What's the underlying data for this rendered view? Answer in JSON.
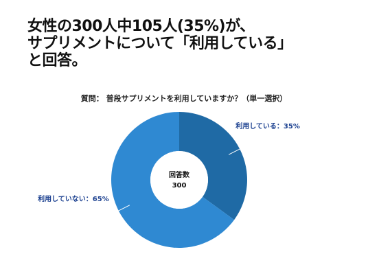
{
  "headline": {
    "line1": "女性の300人中105人(35%)が、",
    "line2": "サプリメントについて「利用している」",
    "line3": "と回答。"
  },
  "chart_data": {
    "type": "pie",
    "donut": true,
    "title": "質問： 普段サプリメントを利用していますか？（単一選択）",
    "center_label": "回答数",
    "center_value": "300",
    "slices": [
      {
        "name": "利用している",
        "value": 35,
        "label": "利用している：35%",
        "color": "#1f6aa5"
      },
      {
        "name": "利用していない",
        "value": 65,
        "label": "利用していない：65%",
        "color": "#2f89d2"
      }
    ],
    "label_color": "#1a3f8f",
    "total": 300
  }
}
